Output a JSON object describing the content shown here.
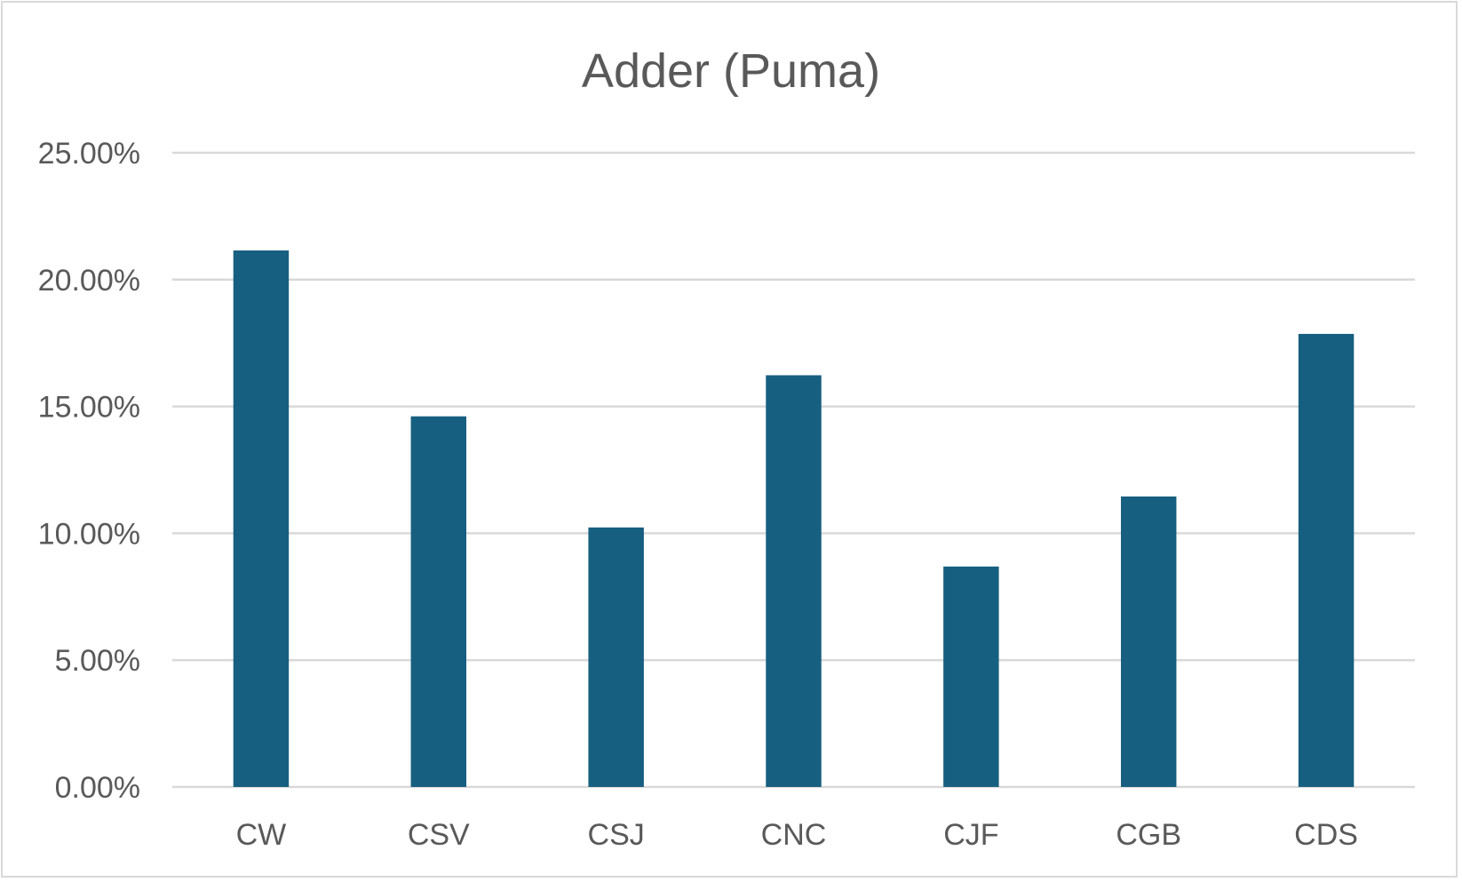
{
  "chart_data": {
    "type": "bar",
    "title": "Adder (Puma)",
    "xlabel": "",
    "ylabel": "",
    "categories": [
      "CW",
      "CSV",
      "CSJ",
      "CNC",
      "CJF",
      "CGB",
      "CDS"
    ],
    "values": [
      0.2115,
      0.1461,
      0.1023,
      0.1623,
      0.0869,
      0.1145,
      0.1786
    ],
    "ylim": [
      0,
      0.25
    ],
    "y_ticks": [
      0,
      0.05,
      0.1,
      0.15,
      0.2,
      0.25
    ],
    "y_tick_labels": [
      "0.00%",
      "5.00%",
      "10.00%",
      "15.00%",
      "20.00%",
      "25.00%"
    ],
    "grid": true,
    "legend": "none",
    "bar_color": "#175f80",
    "grid_color": "#d9d9d9",
    "text_color": "#595959"
  }
}
